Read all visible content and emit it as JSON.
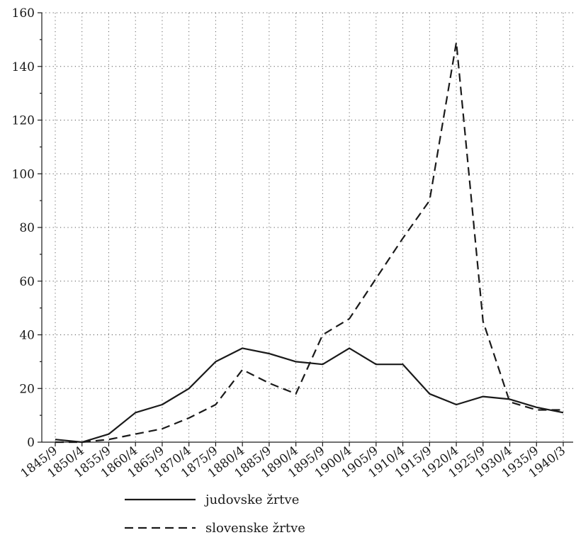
{
  "chart_data": {
    "type": "line",
    "title": "",
    "xlabel": "",
    "ylabel": "",
    "categories": [
      "1845/9",
      "1850/4",
      "1855/9",
      "1860/4",
      "1865/9",
      "1870/4",
      "1875/9",
      "1880/4",
      "1885/9",
      "1890/4",
      "1895/9",
      "1900/4",
      "1905/9",
      "1910/4",
      "1915/9",
      "1920/4",
      "1925/9",
      "1930/4",
      "1935/9",
      "1940/3"
    ],
    "ylim": [
      0,
      160
    ],
    "yticks": [
      0,
      20,
      40,
      60,
      80,
      100,
      120,
      140,
      160
    ],
    "grid": true,
    "legend": "bottom-center",
    "series": [
      {
        "name": "judovske žrtve",
        "style": "solid",
        "color": "#1a1a1a",
        "values": [
          1,
          0,
          3,
          11,
          14,
          20,
          30,
          35,
          33,
          30,
          29,
          35,
          29,
          29,
          18,
          14,
          17,
          16,
          13,
          11
        ]
      },
      {
        "name": "slovenske žrtve",
        "style": "dashed",
        "color": "#1a1a1a",
        "values": [
          0,
          0,
          1,
          3,
          5,
          9,
          14,
          27,
          22,
          18,
          40,
          46,
          61,
          76,
          90,
          149,
          45,
          15,
          12,
          12
        ]
      }
    ]
  }
}
